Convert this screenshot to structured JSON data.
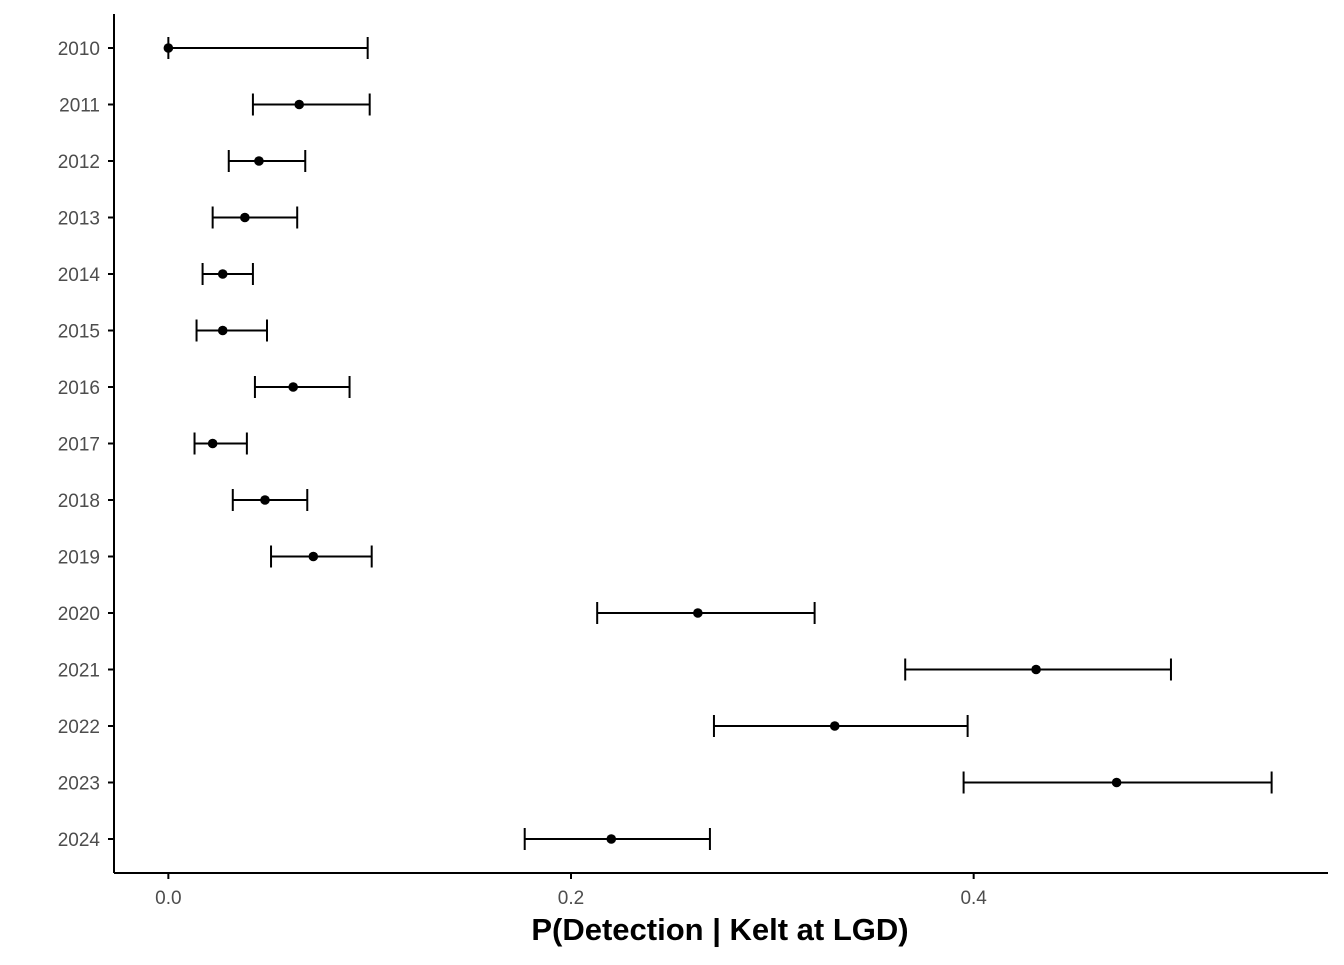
{
  "chart_data": {
    "type": "errorbar",
    "title": "",
    "xlabel": "P(Detection | Kelt at LGD)",
    "ylabel": "",
    "xlim": [
      -0.027,
      0.576
    ],
    "xticks": [
      0.0,
      0.2,
      0.4
    ],
    "xtick_labels": [
      "0.0",
      "0.2",
      "0.4"
    ],
    "grid": false,
    "legend": "none",
    "categories": [
      "2010",
      "2011",
      "2012",
      "2013",
      "2014",
      "2015",
      "2016",
      "2017",
      "2018",
      "2019",
      "2020",
      "2021",
      "2022",
      "2023",
      "2024"
    ],
    "points": [
      {
        "year": "2010",
        "estimate": 0.0,
        "lower": 0.0,
        "upper": 0.099
      },
      {
        "year": "2011",
        "estimate": 0.065,
        "lower": 0.042,
        "upper": 0.1
      },
      {
        "year": "2012",
        "estimate": 0.045,
        "lower": 0.03,
        "upper": 0.068
      },
      {
        "year": "2013",
        "estimate": 0.038,
        "lower": 0.022,
        "upper": 0.064
      },
      {
        "year": "2014",
        "estimate": 0.027,
        "lower": 0.017,
        "upper": 0.042
      },
      {
        "year": "2015",
        "estimate": 0.027,
        "lower": 0.014,
        "upper": 0.049
      },
      {
        "year": "2016",
        "estimate": 0.062,
        "lower": 0.043,
        "upper": 0.09
      },
      {
        "year": "2017",
        "estimate": 0.022,
        "lower": 0.013,
        "upper": 0.039
      },
      {
        "year": "2018",
        "estimate": 0.048,
        "lower": 0.032,
        "upper": 0.069
      },
      {
        "year": "2019",
        "estimate": 0.072,
        "lower": 0.051,
        "upper": 0.101
      },
      {
        "year": "2020",
        "estimate": 0.263,
        "lower": 0.213,
        "upper": 0.321
      },
      {
        "year": "2021",
        "estimate": 0.431,
        "lower": 0.366,
        "upper": 0.498
      },
      {
        "year": "2022",
        "estimate": 0.331,
        "lower": 0.271,
        "upper": 0.397
      },
      {
        "year": "2023",
        "estimate": 0.471,
        "lower": 0.395,
        "upper": 0.548
      },
      {
        "year": "2024",
        "estimate": 0.22,
        "lower": 0.177,
        "upper": 0.269
      }
    ],
    "colors": {
      "marks": "#000000",
      "axis": "#000000",
      "tick_text": "#4d4d4d"
    }
  }
}
